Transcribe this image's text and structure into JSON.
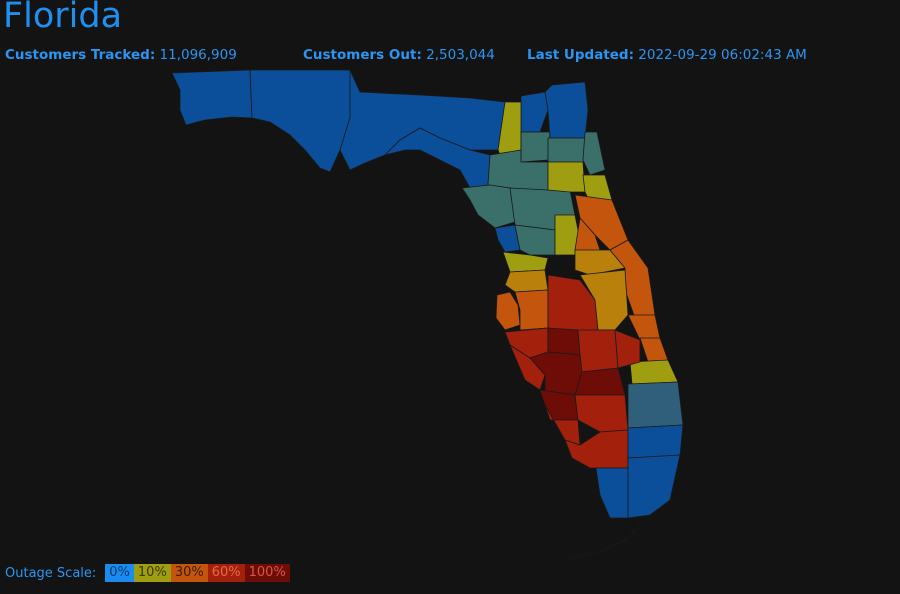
{
  "header": {
    "title": "Florida",
    "customers_tracked_label": "Customers Tracked:",
    "customers_tracked_value": "11,096,909",
    "customers_out_label": "Customers Out:",
    "customers_out_value": "2,503,044",
    "last_updated_label": "Last Updated:",
    "last_updated_value": "2022-09-29 06:02:43 AM"
  },
  "legend": {
    "label": "Outage Scale:",
    "steps": [
      {
        "text": "0%",
        "color": "#1a8cf0",
        "text_color": "#0b3a6a"
      },
      {
        "text": "10%",
        "color": "#9e9e10",
        "text_color": "#3a3a05"
      },
      {
        "text": "30%",
        "color": "#c3560c",
        "text_color": "#3a1a05"
      },
      {
        "text": "60%",
        "color": "#a3200c",
        "text_color": "#e66a4a"
      },
      {
        "text": "100%",
        "color": "#6e0c08",
        "text_color": "#d25a44"
      }
    ]
  },
  "colors": {
    "background": "#131313",
    "accent": "#1f8ff0",
    "outage_0": "#0b4f9a",
    "outage_low": "#3a6f6a",
    "outage_10": "#9e9e10",
    "outage_20": "#b9800c",
    "outage_30": "#c3560c",
    "outage_60": "#a3200c",
    "outage_100": "#6e0c08"
  }
}
